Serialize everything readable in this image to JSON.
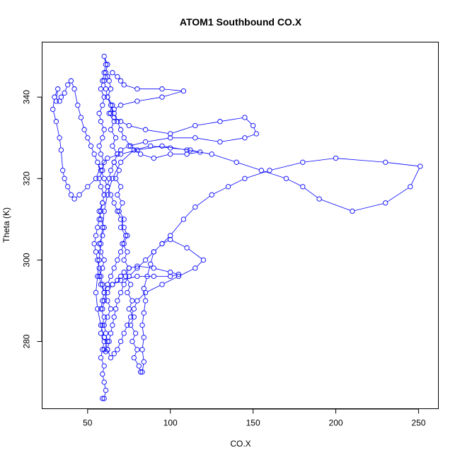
{
  "chart_data": {
    "type": "line",
    "title": "ATOM1 Southbound CO.X",
    "xlabel": "CO.X",
    "ylabel": "Theta (K)",
    "xlim": [
      22.5,
      262
    ],
    "ylim": [
      263.5,
      353.5
    ],
    "xticks": [
      50,
      100,
      150,
      200,
      250
    ],
    "yticks": [
      280,
      300,
      320,
      340
    ],
    "grid": false,
    "legend": "none",
    "color": "#0000ff",
    "series": [
      {
        "points": [
          [
            59,
            266
          ],
          [
            60,
            266
          ],
          [
            61,
            268
          ],
          [
            60,
            270
          ],
          [
            59,
            272
          ],
          [
            60,
            274
          ],
          [
            58,
            276
          ],
          [
            59,
            278
          ],
          [
            60,
            280
          ],
          [
            58,
            282
          ],
          [
            59,
            284
          ],
          [
            60,
            286
          ],
          [
            58,
            288
          ],
          [
            59,
            290
          ],
          [
            60,
            292
          ],
          [
            58,
            294
          ],
          [
            57,
            296
          ],
          [
            59,
            298
          ],
          [
            60,
            300
          ],
          [
            58,
            302
          ],
          [
            57,
            304
          ],
          [
            59,
            306
          ],
          [
            60,
            308
          ],
          [
            58,
            310
          ],
          [
            57,
            312
          ],
          [
            59,
            314
          ],
          [
            60,
            316
          ],
          [
            58,
            318
          ],
          [
            57,
            320
          ],
          [
            59,
            322
          ],
          [
            60,
            324
          ],
          [
            58,
            326
          ],
          [
            57,
            328
          ],
          [
            59,
            330
          ],
          [
            60,
            332
          ],
          [
            58,
            334
          ],
          [
            57,
            336
          ],
          [
            59,
            338
          ],
          [
            60,
            340
          ],
          [
            58,
            342
          ],
          [
            59,
            344
          ],
          [
            60,
            346
          ],
          [
            61,
            348
          ],
          [
            60,
            350
          ],
          [
            62,
            348
          ],
          [
            61,
            346
          ],
          [
            63,
            344
          ],
          [
            64,
            342
          ],
          [
            62,
            340
          ],
          [
            65,
            338
          ],
          [
            63,
            336
          ],
          [
            66,
            334
          ],
          [
            64,
            332
          ],
          [
            67,
            330
          ],
          [
            65,
            328
          ],
          [
            68,
            326
          ],
          [
            66,
            324
          ],
          [
            69,
            322
          ],
          [
            67,
            320
          ],
          [
            70,
            318
          ],
          [
            68,
            316
          ],
          [
            71,
            314
          ],
          [
            69,
            312
          ],
          [
            72,
            310
          ],
          [
            70,
            308
          ],
          [
            73,
            306
          ],
          [
            71,
            304
          ],
          [
            74,
            302
          ],
          [
            72,
            300
          ],
          [
            75,
            298
          ],
          [
            73,
            296
          ],
          [
            76,
            294
          ],
          [
            74,
            292
          ],
          [
            77,
            290
          ],
          [
            75,
            288
          ],
          [
            78,
            286
          ],
          [
            76,
            284
          ],
          [
            79,
            282
          ],
          [
            77,
            280
          ],
          [
            80,
            278
          ],
          [
            78,
            276
          ],
          [
            81,
            274
          ],
          [
            82,
            272.5
          ],
          [
            83,
            272.5
          ],
          [
            84,
            275
          ],
          [
            83,
            278
          ],
          [
            84,
            281
          ],
          [
            83,
            284
          ],
          [
            84,
            287
          ],
          [
            85,
            290
          ],
          [
            84,
            293
          ],
          [
            86,
            296
          ],
          [
            88,
            299
          ],
          [
            90,
            302
          ],
          [
            95,
            304
          ],
          [
            100,
            306
          ],
          [
            108,
            310
          ],
          [
            115,
            313
          ],
          [
            125,
            316
          ],
          [
            135,
            318
          ],
          [
            145,
            320
          ],
          [
            160,
            322
          ],
          [
            180,
            324
          ],
          [
            200,
            325
          ],
          [
            230,
            324
          ],
          [
            251,
            323
          ],
          [
            245,
            318
          ],
          [
            230,
            314
          ],
          [
            210,
            312
          ],
          [
            190,
            315
          ],
          [
            180,
            318
          ],
          [
            170,
            320
          ],
          [
            155,
            322
          ],
          [
            140,
            324
          ],
          [
            125,
            326
          ],
          [
            110,
            327
          ],
          [
            95,
            328
          ],
          [
            80,
            327
          ],
          [
            70,
            326
          ],
          [
            62,
            325
          ],
          [
            58,
            323
          ],
          [
            55,
            320
          ],
          [
            50,
            318
          ],
          [
            45,
            316
          ],
          [
            42,
            315
          ],
          [
            40,
            316
          ],
          [
            38,
            318
          ],
          [
            36,
            320
          ],
          [
            35,
            322
          ],
          [
            34,
            327
          ],
          [
            33,
            330
          ],
          [
            31,
            334
          ],
          [
            29,
            337
          ],
          [
            30,
            340
          ],
          [
            32,
            342
          ],
          [
            31,
            339
          ],
          [
            33,
            339
          ],
          [
            34,
            340
          ],
          [
            36,
            341
          ],
          [
            38,
            343
          ],
          [
            40,
            344
          ],
          [
            42,
            342
          ],
          [
            44,
            338
          ],
          [
            46,
            335
          ],
          [
            48,
            332
          ],
          [
            50,
            330
          ],
          [
            52,
            328
          ],
          [
            54,
            326
          ],
          [
            56,
            324
          ],
          [
            58,
            322
          ],
          [
            60,
            320
          ],
          [
            62,
            318
          ],
          [
            64,
            316
          ],
          [
            66,
            314
          ],
          [
            68,
            312
          ],
          [
            70,
            310
          ],
          [
            72,
            308
          ],
          [
            74,
            306
          ],
          [
            72,
            304
          ],
          [
            70,
            302
          ],
          [
            68,
            300
          ],
          [
            66,
            298
          ],
          [
            64,
            296
          ],
          [
            62,
            294
          ],
          [
            60,
            292
          ],
          [
            62,
            290
          ],
          [
            64,
            288
          ],
          [
            62,
            286
          ],
          [
            60,
            284
          ],
          [
            61,
            282
          ],
          [
            62,
            280
          ],
          [
            60,
            278
          ],
          [
            61,
            277.5
          ],
          [
            62,
            278
          ],
          [
            63,
            280
          ],
          [
            64,
            282
          ],
          [
            65,
            284
          ],
          [
            66,
            286
          ],
          [
            67,
            288
          ],
          [
            68,
            290
          ],
          [
            70,
            292
          ],
          [
            72,
            294
          ],
          [
            75,
            296
          ],
          [
            80,
            298
          ],
          [
            85,
            300
          ],
          [
            90,
            302
          ],
          [
            95,
            304
          ],
          [
            100,
            305
          ],
          [
            110,
            303
          ],
          [
            120,
            300
          ],
          [
            115,
            298
          ],
          [
            105,
            296
          ],
          [
            95,
            294
          ],
          [
            85,
            292
          ],
          [
            80,
            290
          ],
          [
            78,
            288
          ],
          [
            76,
            286
          ],
          [
            74,
            284
          ],
          [
            72,
            282
          ],
          [
            70,
            280
          ],
          [
            68,
            278
          ],
          [
            66,
            277
          ],
          [
            64,
            276
          ],
          [
            62,
            278
          ],
          [
            60,
            281
          ],
          [
            58,
            284
          ],
          [
            56,
            288
          ],
          [
            55,
            292
          ],
          [
            56,
            296
          ],
          [
            57,
            300
          ],
          [
            58,
            304
          ],
          [
            59,
            308
          ],
          [
            60,
            312
          ],
          [
            62,
            316
          ],
          [
            65,
            320
          ],
          [
            70,
            324
          ],
          [
            78,
            327
          ],
          [
            88,
            328
          ],
          [
            100,
            327.5
          ],
          [
            112,
            327
          ],
          [
            118,
            326.5
          ],
          [
            110,
            326
          ],
          [
            100,
            326
          ],
          [
            90,
            325
          ],
          [
            82,
            326
          ],
          [
            76,
            328
          ],
          [
            72,
            330
          ],
          [
            70,
            332
          ],
          [
            68,
            334
          ],
          [
            66,
            336
          ],
          [
            64,
            338
          ],
          [
            62,
            340
          ],
          [
            61,
            342
          ],
          [
            60,
            344
          ],
          [
            62,
            345
          ],
          [
            65,
            346
          ],
          [
            68,
            345
          ],
          [
            70,
            344
          ],
          [
            72,
            343
          ],
          [
            80,
            342
          ],
          [
            95,
            342
          ],
          [
            108,
            341.5
          ],
          [
            95,
            340
          ],
          [
            80,
            339
          ],
          [
            70,
            338
          ],
          [
            66,
            337
          ],
          [
            64,
            336
          ],
          [
            66,
            335
          ],
          [
            70,
            334
          ],
          [
            75,
            333
          ],
          [
            85,
            332
          ],
          [
            100,
            331
          ],
          [
            115,
            333
          ],
          [
            130,
            334
          ],
          [
            145,
            335
          ],
          [
            150,
            333
          ],
          [
            152,
            331
          ],
          [
            145,
            330
          ],
          [
            130,
            329
          ],
          [
            115,
            330
          ],
          [
            100,
            330
          ],
          [
            85,
            329
          ],
          [
            75,
            328
          ],
          [
            70,
            327
          ],
          [
            68,
            326
          ],
          [
            66,
            324
          ],
          [
            64,
            322
          ],
          [
            63,
            320
          ],
          [
            62,
            318
          ],
          [
            60,
            316
          ],
          [
            59,
            314
          ],
          [
            58,
            312
          ],
          [
            57,
            310
          ],
          [
            56,
            308
          ],
          [
            55,
            306
          ],
          [
            54,
            304
          ],
          [
            55,
            302
          ],
          [
            56,
            300
          ],
          [
            57,
            298
          ],
          [
            58,
            296
          ],
          [
            59,
            294
          ],
          [
            60,
            292
          ],
          [
            62,
            293
          ],
          [
            65,
            294
          ],
          [
            68,
            295
          ],
          [
            70,
            296
          ],
          [
            72,
            297
          ],
          [
            75,
            298
          ],
          [
            80,
            298.5
          ],
          [
            90,
            298
          ],
          [
            100,
            297
          ],
          [
            105,
            296.5
          ],
          [
            100,
            296
          ],
          [
            90,
            296
          ],
          [
            80,
            296
          ],
          [
            70,
            295
          ],
          [
            65,
            294
          ],
          [
            62,
            292
          ],
          [
            60,
            290
          ],
          [
            59,
            288
          ]
        ]
      }
    ]
  }
}
